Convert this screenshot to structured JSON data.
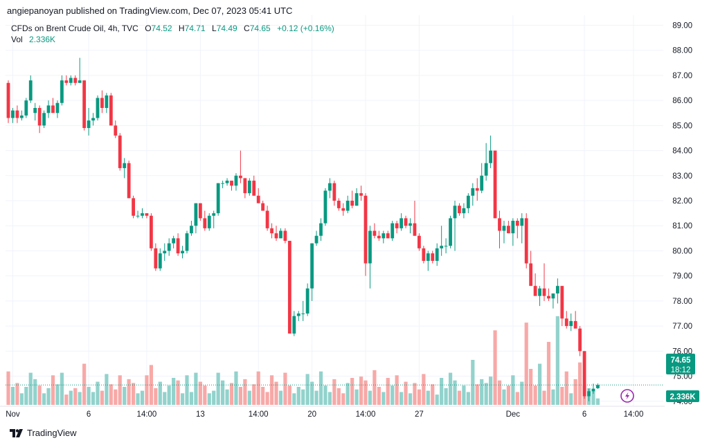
{
  "header": {
    "text": "angiepanoyan published on TradingView.com, Dec 07, 2023 05:41 UTC"
  },
  "legend": {
    "symbol": "CFDs on Brent Crude Oil, 4h, TVC",
    "open_label": "O",
    "open": "74.52",
    "high_label": "H",
    "high": "74.71",
    "low_label": "L",
    "low": "74.49",
    "close_label": "C",
    "close": "74.65",
    "change": "+0.12 (+0.16%)",
    "vol_label": "Vol",
    "vol": "2.336K"
  },
  "badges": {
    "price": "74.65",
    "countdown": "18:12",
    "volume": "2.336K"
  },
  "footer": {
    "brand": "TradingView"
  },
  "colors": {
    "up": "#089981",
    "down": "#f23645",
    "vol_up": "#92d2cc",
    "vol_down": "#f7a9a7",
    "grid": "#f0f3fa"
  },
  "icons": {
    "replay": "lightning-icon",
    "logo": "tradingview-logo-icon"
  },
  "chart_data": {
    "type": "candlestick",
    "title": "CFDs on Brent Crude Oil, 4h, TVC",
    "y_ticks": [
      "89.00",
      "88.00",
      "87.00",
      "86.00",
      "85.00",
      "84.00",
      "83.00",
      "82.00",
      "81.00",
      "80.00",
      "79.00",
      "78.00",
      "77.00",
      "76.00",
      "75.00",
      "74.00"
    ],
    "ylim": [
      73.8,
      89.4
    ],
    "x_ticks": [
      {
        "label": "Nov",
        "index": 1
      },
      {
        "label": "6",
        "index": 18
      },
      {
        "label": "14:00",
        "index": 31
      },
      {
        "label": "13",
        "index": 43
      },
      {
        "label": "14:00",
        "index": 56
      },
      {
        "label": "20",
        "index": 68
      },
      {
        "label": "14:00",
        "index": 80
      },
      {
        "label": "27",
        "index": 92
      },
      {
        "label": "Dec",
        "index": 113
      },
      {
        "label": "6",
        "index": 129
      },
      {
        "label": "14:00",
        "index": 140
      }
    ],
    "vol_max": 7.0,
    "last_price": 74.65,
    "candles": [
      [
        86.7,
        86.8,
        85.1,
        85.3,
        2.6
      ],
      [
        85.3,
        85.7,
        85.1,
        85.6,
        1.4
      ],
      [
        85.6,
        85.8,
        85.1,
        85.3,
        1.7
      ],
      [
        85.3,
        85.6,
        85.2,
        85.4,
        0.9
      ],
      [
        85.4,
        86.1,
        85.3,
        86.0,
        1.4
      ],
      [
        86.0,
        87.0,
        85.9,
        86.8,
        2.5
      ],
      [
        85.5,
        85.9,
        85.2,
        85.7,
        2.0
      ],
      [
        85.7,
        85.8,
        84.7,
        85.0,
        1.5
      ],
      [
        85.0,
        85.6,
        84.9,
        85.5,
        0.9
      ],
      [
        85.5,
        86.0,
        85.3,
        85.8,
        1.3
      ],
      [
        85.8,
        86.1,
        85.6,
        85.5,
        2.3
      ],
      [
        85.5,
        86.0,
        85.3,
        85.9,
        1.6
      ],
      [
        85.9,
        87.0,
        85.8,
        86.8,
        2.5
      ],
      [
        86.8,
        87.0,
        86.6,
        86.7,
        0.8
      ],
      [
        86.7,
        87.0,
        86.6,
        86.9,
        1.1
      ],
      [
        86.9,
        87.0,
        86.6,
        86.7,
        1.3
      ],
      [
        86.7,
        87.7,
        86.7,
        86.8,
        1.0
      ],
      [
        86.8,
        86.8,
        84.8,
        84.9,
        3.2
      ],
      [
        84.9,
        85.7,
        84.6,
        85.2,
        1.4
      ],
      [
        85.2,
        85.5,
        85.0,
        85.3,
        1.0
      ],
      [
        85.3,
        86.2,
        85.2,
        86.1,
        1.8
      ],
      [
        86.1,
        86.4,
        85.5,
        85.7,
        1.1
      ],
      [
        85.7,
        86.3,
        85.5,
        86.2,
        2.4
      ],
      [
        86.2,
        86.3,
        85.0,
        85.0,
        1.6
      ],
      [
        85.0,
        85.2,
        84.5,
        84.6,
        1.2
      ],
      [
        84.6,
        84.7,
        83.2,
        83.3,
        2.3
      ],
      [
        83.3,
        83.7,
        82.9,
        83.5,
        1.4
      ],
      [
        83.5,
        83.6,
        82.1,
        82.1,
        2.0
      ],
      [
        82.1,
        82.2,
        81.3,
        81.4,
        1.7
      ],
      [
        81.4,
        81.6,
        81.3,
        81.4,
        0.9
      ],
      [
        81.4,
        81.7,
        81.3,
        81.5,
        1.1
      ],
      [
        81.5,
        81.5,
        81.3,
        81.4,
        2.3
      ],
      [
        81.4,
        81.5,
        80.0,
        80.1,
        3.1
      ],
      [
        80.1,
        80.3,
        79.2,
        79.3,
        1.3
      ],
      [
        79.3,
        80.1,
        79.2,
        79.9,
        1.8
      ],
      [
        79.9,
        80.3,
        79.6,
        80.0,
        1.0
      ],
      [
        80.0,
        80.5,
        79.8,
        80.3,
        1.5
      ],
      [
        80.3,
        80.6,
        80.1,
        80.5,
        2.1
      ],
      [
        80.5,
        80.7,
        79.8,
        79.9,
        1.9
      ],
      [
        79.9,
        80.2,
        79.7,
        80.0,
        0.9
      ],
      [
        80.0,
        80.8,
        79.9,
        80.7,
        2.3
      ],
      [
        80.7,
        81.2,
        80.6,
        81.0,
        1.0
      ],
      [
        81.0,
        81.9,
        80.7,
        81.9,
        2.5
      ],
      [
        81.9,
        81.9,
        81.2,
        81.3,
        1.8
      ],
      [
        81.3,
        81.6,
        80.8,
        80.9,
        1.5
      ],
      [
        80.9,
        81.5,
        80.8,
        81.4,
        0.9
      ],
      [
        81.4,
        81.6,
        80.9,
        81.5,
        1.1
      ],
      [
        81.5,
        82.7,
        81.4,
        82.7,
        2.5
      ],
      [
        82.7,
        82.8,
        82.5,
        82.7,
        1.9
      ],
      [
        82.7,
        82.9,
        82.6,
        82.8,
        1.2
      ],
      [
        82.8,
        82.8,
        82.4,
        82.6,
        1.7
      ],
      [
        82.6,
        83.1,
        82.4,
        83.0,
        2.6
      ],
      [
        83.0,
        84.0,
        82.7,
        82.9,
        1.4
      ],
      [
        82.9,
        82.9,
        82.1,
        82.3,
        2.0
      ],
      [
        82.3,
        82.9,
        82.2,
        82.8,
        1.1
      ],
      [
        82.8,
        83.0,
        82.2,
        82.2,
        1.6
      ],
      [
        82.2,
        82.5,
        81.9,
        81.9,
        2.6
      ],
      [
        81.9,
        82.0,
        81.6,
        81.6,
        1.4
      ],
      [
        81.6,
        81.8,
        80.8,
        80.9,
        1.0
      ],
      [
        80.9,
        81.1,
        80.5,
        80.7,
        2.3
      ],
      [
        80.7,
        81.0,
        80.4,
        80.5,
        1.8
      ],
      [
        80.5,
        80.9,
        80.5,
        80.8,
        1.1
      ],
      [
        80.8,
        80.9,
        80.3,
        80.4,
        2.5
      ],
      [
        80.4,
        80.4,
        76.7,
        76.7,
        1.5
      ],
      [
        76.7,
        77.6,
        76.6,
        77.4,
        0.9
      ],
      [
        77.4,
        77.6,
        77.2,
        77.5,
        1.4
      ],
      [
        77.5,
        78.0,
        77.2,
        77.5,
        1.2
      ],
      [
        77.5,
        78.7,
        77.4,
        78.5,
        2.4
      ],
      [
        78.5,
        80.3,
        78.0,
        80.3,
        1.8
      ],
      [
        80.3,
        80.8,
        80.2,
        80.6,
        1.1
      ],
      [
        80.6,
        81.3,
        80.4,
        81.1,
        2.6
      ],
      [
        81.1,
        82.5,
        81.0,
        82.4,
        1.5
      ],
      [
        82.4,
        82.9,
        82.1,
        82.7,
        1.0
      ],
      [
        82.7,
        82.8,
        81.8,
        82.0,
        2.0
      ],
      [
        82.0,
        82.1,
        81.6,
        81.7,
        1.3
      ],
      [
        81.7,
        81.9,
        81.4,
        81.6,
        0.9
      ],
      [
        81.6,
        82.2,
        81.5,
        82.0,
        1.7
      ],
      [
        82.0,
        82.4,
        81.7,
        81.8,
        2.1
      ],
      [
        81.8,
        82.5,
        81.8,
        82.3,
        1.2
      ],
      [
        82.3,
        82.6,
        82.0,
        82.2,
        2.2
      ],
      [
        82.2,
        82.3,
        79.0,
        79.5,
        1.9
      ],
      [
        79.5,
        81.0,
        78.5,
        80.8,
        1.1
      ],
      [
        80.8,
        81.1,
        80.5,
        80.6,
        2.7
      ],
      [
        80.6,
        80.8,
        80.4,
        80.5,
        1.4
      ],
      [
        80.5,
        80.8,
        80.3,
        80.7,
        1.0
      ],
      [
        80.7,
        80.8,
        80.5,
        80.5,
        2.1
      ],
      [
        80.5,
        81.2,
        80.4,
        81.1,
        1.5
      ],
      [
        81.1,
        81.2,
        80.7,
        80.9,
        2.3
      ],
      [
        80.9,
        81.5,
        80.8,
        81.3,
        1.0
      ],
      [
        81.3,
        81.4,
        80.9,
        81.0,
        1.8
      ],
      [
        81.0,
        81.3,
        80.7,
        81.1,
        0.9
      ],
      [
        81.1,
        82.0,
        80.6,
        80.6,
        1.7
      ],
      [
        80.6,
        80.7,
        80.0,
        80.1,
        1.2
      ],
      [
        80.1,
        80.2,
        79.5,
        79.6,
        2.4
      ],
      [
        79.6,
        80.0,
        79.2,
        79.9,
        1.1
      ],
      [
        79.9,
        80.0,
        79.5,
        79.6,
        1.6
      ],
      [
        79.6,
        80.3,
        79.4,
        80.1,
        0.8
      ],
      [
        80.1,
        81.0,
        79.8,
        80.2,
        2.1
      ],
      [
        80.2,
        80.5,
        79.9,
        80.2,
        1.3
      ],
      [
        80.2,
        81.4,
        80.1,
        81.3,
        2.5
      ],
      [
        81.3,
        82.0,
        80.0,
        81.8,
        1.9
      ],
      [
        81.8,
        81.9,
        81.4,
        81.5,
        1.1
      ],
      [
        81.5,
        81.9,
        81.3,
        81.7,
        1.5
      ],
      [
        81.7,
        82.3,
        81.5,
        82.2,
        1.0
      ],
      [
        82.2,
        82.7,
        81.8,
        82.5,
        3.5
      ],
      [
        82.5,
        82.9,
        82.0,
        82.4,
        1.6
      ],
      [
        82.4,
        83.5,
        82.3,
        83.0,
        2.0
      ],
      [
        83.0,
        84.3,
        82.8,
        83.5,
        1.7
      ],
      [
        83.5,
        84.6,
        83.3,
        84.0,
        2.2
      ],
      [
        84.0,
        84.0,
        81.3,
        81.3,
        5.8
      ],
      [
        81.3,
        81.6,
        80.1,
        80.8,
        1.9
      ],
      [
        80.8,
        81.2,
        80.3,
        81.0,
        1.2
      ],
      [
        81.0,
        81.2,
        80.7,
        80.7,
        1.5
      ],
      [
        80.7,
        81.3,
        80.2,
        81.2,
        2.3
      ],
      [
        81.2,
        81.3,
        80.5,
        81.0,
        1.0
      ],
      [
        81.0,
        81.5,
        80.3,
        81.3,
        1.8
      ],
      [
        81.3,
        81.5,
        79.3,
        79.5,
        6.4
      ],
      [
        79.5,
        80.0,
        78.7,
        78.6,
        2.8
      ],
      [
        78.6,
        79.1,
        78.3,
        78.2,
        1.5
      ],
      [
        78.2,
        78.6,
        77.8,
        78.5,
        3.2
      ],
      [
        78.5,
        79.5,
        78.0,
        78.2,
        1.1
      ],
      [
        78.2,
        78.5,
        78.0,
        78.1,
        4.9
      ],
      [
        78.1,
        78.3,
        77.7,
        78.3,
        1.2
      ],
      [
        78.3,
        78.9,
        77.9,
        78.6,
        6.9
      ],
      [
        78.6,
        78.6,
        77.0,
        77.3,
        1.4
      ],
      [
        77.3,
        77.6,
        76.9,
        77.0,
        2.6
      ],
      [
        77.0,
        77.5,
        76.8,
        77.2,
        0.9
      ],
      [
        77.2,
        77.6,
        76.9,
        76.9,
        2.0
      ],
      [
        76.9,
        77.0,
        75.8,
        76.0,
        3.3
      ],
      [
        76.0,
        76.0,
        74.1,
        74.2,
        1.6
      ],
      [
        74.2,
        74.5,
        74.0,
        74.4,
        1.3
      ],
      [
        74.4,
        74.7,
        74.3,
        74.5,
        1.1
      ],
      [
        74.52,
        74.71,
        74.49,
        74.65,
        0.5
      ]
    ]
  }
}
